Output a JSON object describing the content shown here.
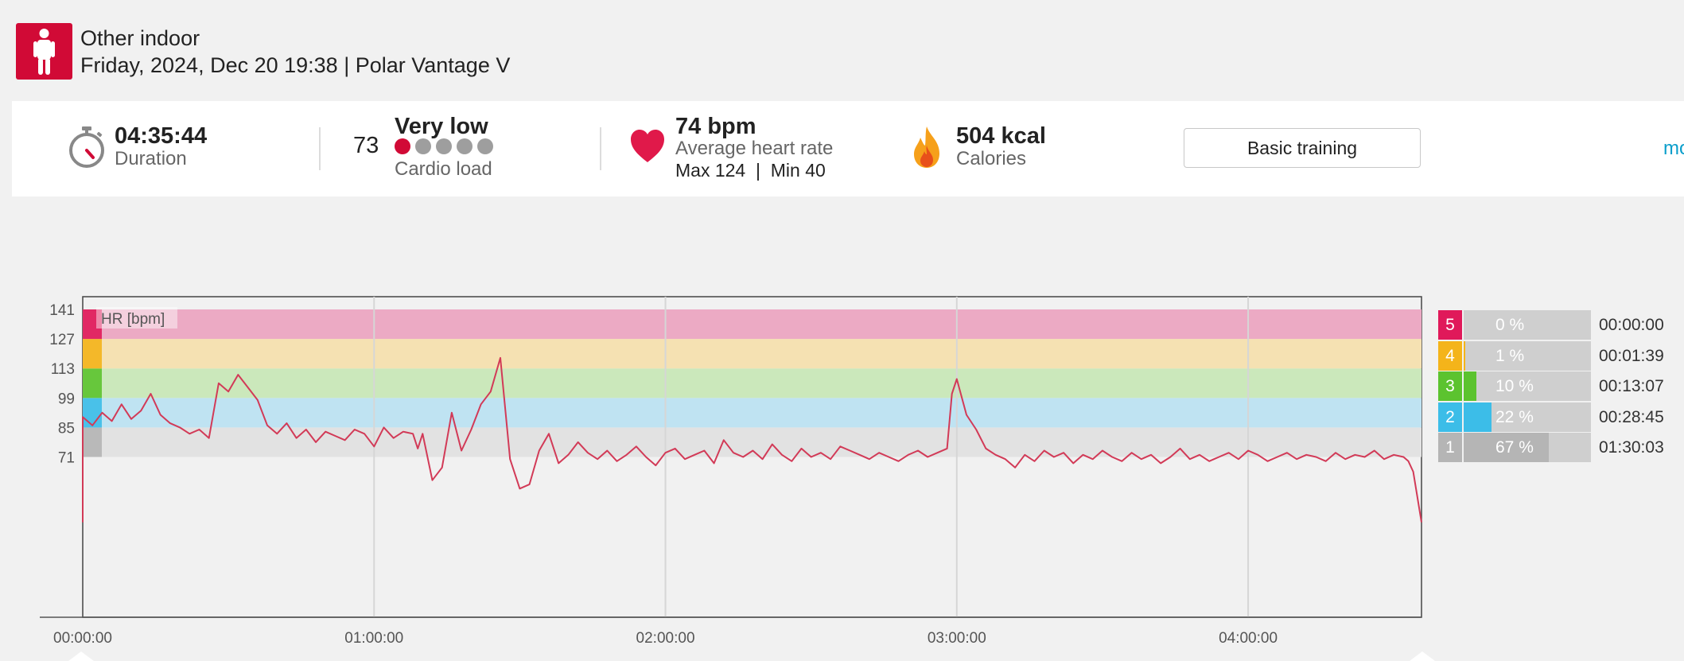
{
  "header": {
    "sport_name": "Other indoor",
    "session_info": "Friday, 2024, Dec 20 19:38 | Polar Vantage V",
    "sport_icon": "person-standing-icon"
  },
  "summary": {
    "duration": {
      "value": "04:35:44",
      "label": "Duration",
      "icon": "stopwatch-icon"
    },
    "cardio": {
      "number": "73",
      "level": "Very low",
      "label": "Cardio load",
      "dots_active": 1,
      "dots_total": 5
    },
    "heart_rate": {
      "value": "74 bpm",
      "label": "Average heart rate",
      "max_min": "Max 124  |  Min 40",
      "icon": "heart-icon"
    },
    "calories": {
      "value": "504 kcal",
      "label": "Calories",
      "icon": "flame-icon"
    },
    "training_button": "Basic training",
    "more_link": "mo"
  },
  "colors": {
    "brand": "#d10a36",
    "zone5": "#e0195a",
    "zone4": "#f4b41a",
    "zone3": "#5cc32f",
    "zone2": "#3cbde8",
    "zone1": "#b5b5b5",
    "hr_line": "#d23a57",
    "link": "#0a9ecb"
  },
  "zones": [
    {
      "num": "5",
      "percent": "0 %",
      "fraction": 0.0,
      "time": "00:00:00"
    },
    {
      "num": "4",
      "percent": "1 %",
      "fraction": 0.01,
      "time": "00:01:39"
    },
    {
      "num": "3",
      "percent": "10 %",
      "fraction": 0.1,
      "time": "00:13:07"
    },
    {
      "num": "2",
      "percent": "22 %",
      "fraction": 0.22,
      "time": "00:28:45"
    },
    {
      "num": "1",
      "percent": "67 %",
      "fraction": 0.67,
      "time": "01:30:03"
    }
  ],
  "chart_data": {
    "type": "line",
    "series_label": "HR [bpm]",
    "y_ticks": [
      141,
      127,
      113,
      99,
      85,
      71
    ],
    "x_ticks": [
      "00:00:00",
      "01:00:00",
      "02:00:00",
      "03:00:00",
      "04:00:00"
    ],
    "x_range_minutes": [
      0,
      275.7
    ],
    "zone_bands_bpm": [
      [
        71,
        85
      ],
      [
        85,
        99
      ],
      [
        99,
        113
      ],
      [
        113,
        127
      ],
      [
        127,
        141
      ]
    ],
    "grid": true,
    "hr_points": {
      "minutes": [
        0,
        2,
        4,
        6,
        8,
        10,
        12,
        14,
        16,
        18,
        20,
        22,
        24,
        26,
        28,
        30,
        32,
        34,
        36,
        38,
        40,
        42,
        44,
        46,
        48,
        50,
        52,
        54,
        56,
        58,
        60,
        62,
        64,
        66,
        68,
        69,
        70,
        72,
        74,
        76,
        78,
        80,
        82,
        84,
        86,
        88,
        90,
        92,
        94,
        96,
        98,
        100,
        102,
        104,
        106,
        108,
        110,
        112,
        114,
        116,
        118,
        120,
        122,
        124,
        126,
        128,
        130,
        132,
        134,
        136,
        138,
        140,
        142,
        144,
        146,
        148,
        150,
        152,
        154,
        156,
        158,
        160,
        162,
        164,
        166,
        168,
        170,
        172,
        174,
        176,
        178,
        179,
        180,
        182,
        184,
        186,
        188,
        190,
        192,
        194,
        196,
        198,
        200,
        202,
        204,
        206,
        208,
        210,
        212,
        214,
        216,
        218,
        220,
        222,
        224,
        226,
        228,
        230,
        232,
        234,
        236,
        238,
        240,
        242,
        244,
        246,
        248,
        250,
        252,
        254,
        256,
        258,
        260,
        262,
        264,
        266,
        268,
        270,
        272,
        273,
        274,
        275.7
      ],
      "bpm": [
        90,
        86,
        92,
        88,
        96,
        89,
        93,
        101,
        91,
        87,
        85,
        82,
        84,
        80,
        106,
        102,
        110,
        104,
        98,
        86,
        82,
        87,
        80,
        84,
        78,
        83,
        81,
        79,
        84,
        82,
        76,
        85,
        80,
        83,
        82,
        75,
        82,
        60,
        66,
        92,
        74,
        84,
        96,
        102,
        118,
        70,
        56,
        58,
        74,
        82,
        68,
        72,
        78,
        73,
        70,
        74,
        69,
        72,
        76,
        71,
        67,
        73,
        75,
        70,
        72,
        74,
        68,
        79,
        73,
        71,
        74,
        70,
        77,
        72,
        69,
        75,
        71,
        73,
        70,
        76,
        74,
        72,
        70,
        73,
        71,
        69,
        72,
        74,
        71,
        73,
        75,
        101,
        108,
        91,
        84,
        75,
        72,
        70,
        66,
        72,
        69,
        74,
        71,
        73,
        68,
        72,
        70,
        74,
        71,
        69,
        73,
        70,
        72,
        68,
        71,
        75,
        70,
        72,
        69,
        71,
        73,
        70,
        74,
        72,
        69,
        71,
        73,
        70,
        72,
        71,
        69,
        73,
        70,
        72,
        71,
        74,
        70,
        72,
        71,
        69,
        64,
        40
      ]
    }
  }
}
